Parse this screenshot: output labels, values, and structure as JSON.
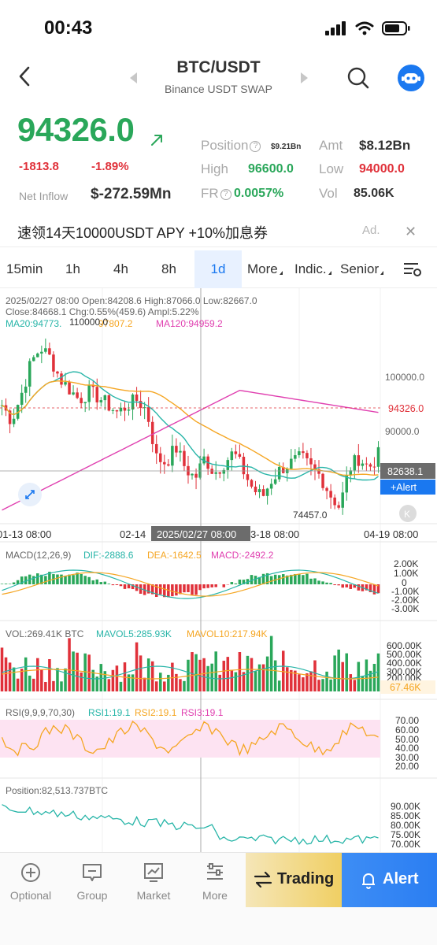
{
  "status": {
    "time": "00:43"
  },
  "nav": {
    "title": "BTC/USDT",
    "subtitle": "Binance USDT SWAP"
  },
  "quote": {
    "last_price": "94326.0",
    "change_abs": "-1813.8",
    "change_pct": "-1.89%",
    "net_inflow_label": "Net Inflow",
    "net_inflow_value": "$-272.59Mn",
    "position_label": "Position",
    "position_value": "$9.21Bn",
    "amt_label": "Amt",
    "amt_value": "$8.12Bn",
    "high_label": "High",
    "high_value": "96600.0",
    "low_label": "Low",
    "low_value": "94000.0",
    "fr_label": "FR",
    "fr_value": "0.0057%",
    "vol_label": "Vol",
    "vol_value": "85.06K",
    "colors": {
      "up": "#2aa75a",
      "down": "#e0313a"
    }
  },
  "promo": {
    "text": "速领14天10000USDT APY +10%加息券",
    "ad": "Ad.",
    "close": "✕"
  },
  "tabs": [
    {
      "label": "15min"
    },
    {
      "label": "1h"
    },
    {
      "label": "4h"
    },
    {
      "label": "8h"
    },
    {
      "label": "1d",
      "active": true
    },
    {
      "label": "More"
    },
    {
      "label": "Indic."
    },
    {
      "label": "Senior"
    }
  ],
  "chart": {
    "info_line1": "2025/02/27 08:00 Open:84208.6 High:87066.0 Low:82667.0",
    "info_line2": "Close:84668.1 Chg:0.55%(459.6) Ampl:5.22%",
    "ma20_label": "MA20:94773.",
    "ma60_label": "97807.2",
    "ma120_label": "MA120:94959.2",
    "max_label": "110000.0",
    "min_label": "74457.0",
    "price_axis": [
      "100000.0",
      "90000.0"
    ],
    "current_price_tag": "94326.0",
    "crosshair_price_tag": "82638.1",
    "alert_tag": "+Alert",
    "x_labels": [
      "01-13 08:00",
      "02-14",
      "3-18 08:00",
      "04-19 08:00"
    ],
    "crosshair_date": "2025/02/27 08:00",
    "k_badge": "K"
  },
  "macd": {
    "label": "MACD(12,26,9)",
    "dif": "DIF:-2888.6",
    "dea": "DEA:-1642.5",
    "macd": "MACD:-2492.2",
    "axis": [
      "2.00K",
      "1.00K",
      "0",
      "-1.00K",
      "-2.00K",
      "-3.00K"
    ]
  },
  "vol": {
    "label": "VOL:269.41K BTC",
    "mavol5": "MAVOL5:285.93K",
    "mavol10": "MAVOL10:217.94K",
    "axis": [
      "600.00K",
      "500.00K",
      "400.00K",
      "300.00K",
      "200.00K"
    ],
    "tag": "67.46K"
  },
  "rsi": {
    "label": "RSI(9,9,9,70,30)",
    "rsi1": "RSI1:19.1",
    "rsi2": "RSI2:19.1",
    "rsi3": "RSI3:19.1",
    "axis": [
      "70.00",
      "60.00",
      "50.00",
      "40.00",
      "30.00",
      "20.00"
    ]
  },
  "position": {
    "label": "Position:82,513.737BTC",
    "axis": [
      "90.00K",
      "85.00K",
      "80.00K",
      "75.00K",
      "70.00K"
    ]
  },
  "bottom": {
    "items": [
      {
        "label": "Optional"
      },
      {
        "label": "Group"
      },
      {
        "label": "Market"
      },
      {
        "label": "More"
      }
    ],
    "trading": "Trading",
    "alert": "Alert"
  },
  "chart_data": {
    "type": "candlestick",
    "title": "BTC/USDT 1d",
    "x_range": [
      "01-13",
      "04-19"
    ],
    "y_range": [
      74457.0,
      110000.0
    ],
    "current_price": 94326.0,
    "crosshair_price": 82638.1,
    "selected_candle": {
      "date": "2025/02/27 08:00",
      "open": 84208.6,
      "high": 87066.0,
      "low": 82667.0,
      "close": 84668.1
    }
  }
}
